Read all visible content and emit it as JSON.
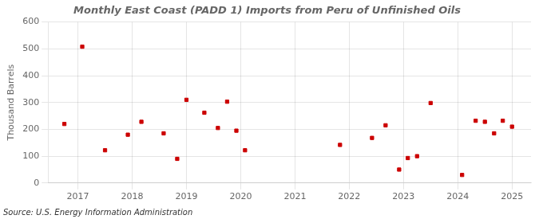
{
  "chart_data": {
    "type": "scatter",
    "title": "Monthly East Coast (PADD 1) Imports from Peru of Unfinished Oils",
    "ylabel": "Thousand Barrels",
    "annotations": [
      "Source: U.S. Energy Information Administration"
    ],
    "x": [
      2016.75,
      2017.08,
      2017.5,
      2017.92,
      2018.17,
      2018.58,
      2018.83,
      2019.0,
      2019.33,
      2019.58,
      2019.75,
      2019.92,
      2020.08,
      2021.83,
      2022.42,
      2022.67,
      2022.92,
      2023.08,
      2023.25,
      2023.5,
      2024.08,
      2024.33,
      2024.5,
      2024.67,
      2024.83,
      2025.0
    ],
    "values": [
      220,
      508,
      122,
      180,
      228,
      185,
      90,
      310,
      262,
      205,
      303,
      195,
      122,
      142,
      168,
      215,
      50,
      93,
      100,
      298,
      30,
      232,
      228,
      185,
      232,
      210
    ],
    "color": "#cc0000",
    "marker": "square",
    "xlim": [
      2016.45,
      2025.35
    ],
    "xticks": [
      2017,
      2018,
      2019,
      2020,
      2021,
      2022,
      2023,
      2024,
      2025
    ],
    "ylim": [
      0,
      600
    ],
    "yticks": [
      0,
      100,
      200,
      300,
      400,
      500,
      600
    ],
    "grid": true
  }
}
